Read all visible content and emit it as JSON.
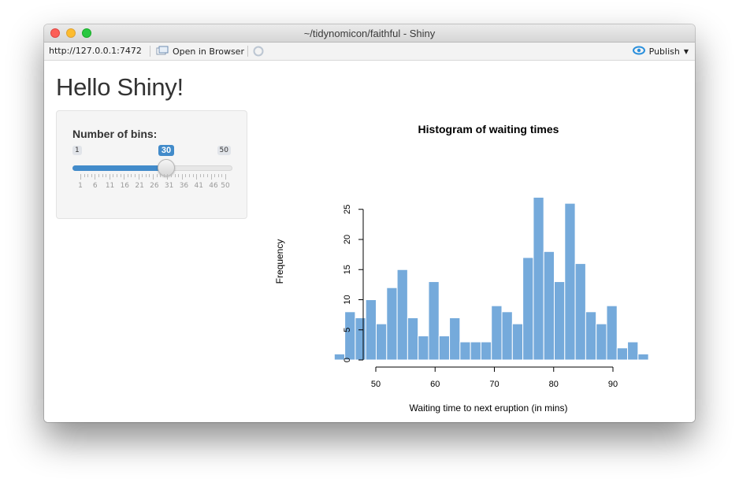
{
  "window": {
    "title": "~/tidynomicon/faithful - Shiny"
  },
  "toolbar": {
    "url": "http://127.0.0.1:7472",
    "open_in_browser": "Open in Browser",
    "publish": "Publish"
  },
  "page": {
    "heading": "Hello Shiny!"
  },
  "slider": {
    "label": "Number of bins:",
    "min": 1,
    "max": 50,
    "value": 30,
    "min_label": "1",
    "max_label": "50",
    "value_label": "30",
    "grid_labels": [
      "1",
      "6",
      "11",
      "16",
      "21",
      "26",
      "31",
      "36",
      "41",
      "46",
      "50"
    ],
    "accent": "#428bca"
  },
  "chart_data": {
    "type": "bar",
    "title": "Histogram of waiting times",
    "xlabel": "Waiting time to next eruption (in mins)",
    "ylabel": "Frequency",
    "bar_color": "#75aadb",
    "bin_width": 1.7667,
    "x_start": 43,
    "values": [
      1,
      8,
      7,
      10,
      6,
      12,
      15,
      7,
      4,
      13,
      4,
      7,
      3,
      3,
      3,
      9,
      8,
      6,
      17,
      27,
      18,
      13,
      26,
      16,
      8,
      6,
      9,
      2,
      3,
      1
    ],
    "xticks": [
      50,
      60,
      70,
      80,
      90
    ],
    "yticks": [
      0,
      5,
      10,
      15,
      20,
      25
    ],
    "xlim": [
      43,
      96
    ],
    "ylim": [
      0,
      27
    ]
  }
}
